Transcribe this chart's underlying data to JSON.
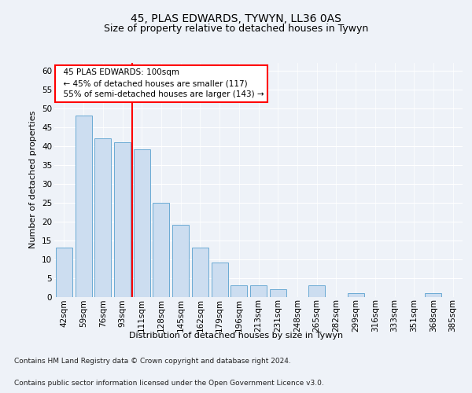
{
  "title1": "45, PLAS EDWARDS, TYWYN, LL36 0AS",
  "title2": "Size of property relative to detached houses in Tywyn",
  "xlabel": "Distribution of detached houses by size in Tywyn",
  "ylabel": "Number of detached properties",
  "categories": [
    "42sqm",
    "59sqm",
    "76sqm",
    "93sqm",
    "111sqm",
    "128sqm",
    "145sqm",
    "162sqm",
    "179sqm",
    "196sqm",
    "213sqm",
    "231sqm",
    "248sqm",
    "265sqm",
    "282sqm",
    "299sqm",
    "316sqm",
    "333sqm",
    "351sqm",
    "368sqm",
    "385sqm"
  ],
  "values": [
    13,
    48,
    42,
    41,
    39,
    25,
    19,
    13,
    9,
    3,
    3,
    2,
    0,
    3,
    0,
    1,
    0,
    0,
    0,
    1,
    0
  ],
  "bar_color": "#ccddf0",
  "bar_edge_color": "#6aaad4",
  "red_line_x": 3.5,
  "annotation_text": "  45 PLAS EDWARDS: 100sqm\n  ← 45% of detached houses are smaller (117)\n  55% of semi-detached houses are larger (143) →",
  "annotation_box_color": "white",
  "annotation_box_edge_color": "red",
  "ylim": [
    0,
    62
  ],
  "yticks": [
    0,
    5,
    10,
    15,
    20,
    25,
    30,
    35,
    40,
    45,
    50,
    55,
    60
  ],
  "footer1": "Contains HM Land Registry data © Crown copyright and database right 2024.",
  "footer2": "Contains public sector information licensed under the Open Government Licence v3.0.",
  "bg_color": "#eef2f8",
  "plot_bg_color": "#eef2f8",
  "title1_fontsize": 10,
  "title2_fontsize": 9,
  "xlabel_fontsize": 8,
  "ylabel_fontsize": 8,
  "tick_fontsize": 7.5,
  "footer_fontsize": 6.5
}
